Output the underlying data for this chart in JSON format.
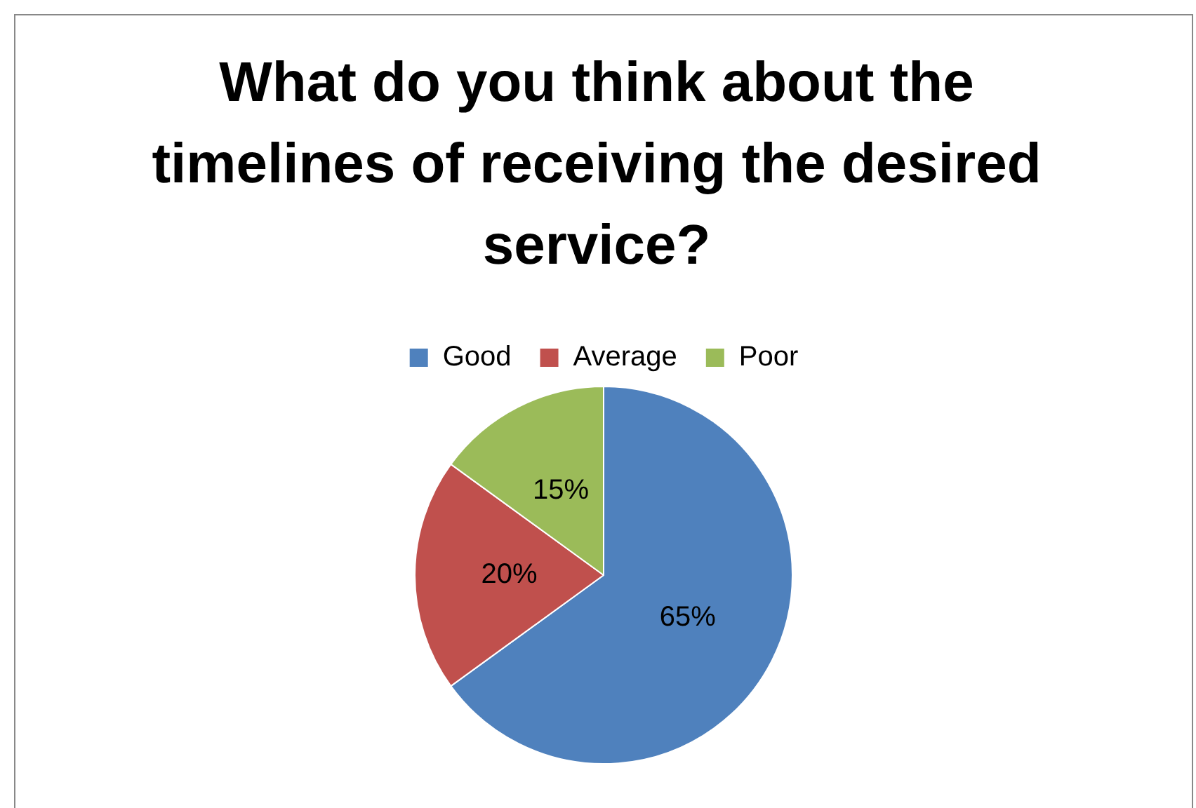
{
  "chart_data": {
    "type": "pie",
    "title": "What do you think about the timelines of receiving the desired service?",
    "categories": [
      "Good",
      "Average",
      "Poor"
    ],
    "values": [
      65,
      20,
      15
    ],
    "colors": [
      "#4f81bd",
      "#c0504d",
      "#9bbb59"
    ],
    "value_labels": [
      "65%",
      "20%",
      "15%"
    ],
    "legend": "top"
  }
}
